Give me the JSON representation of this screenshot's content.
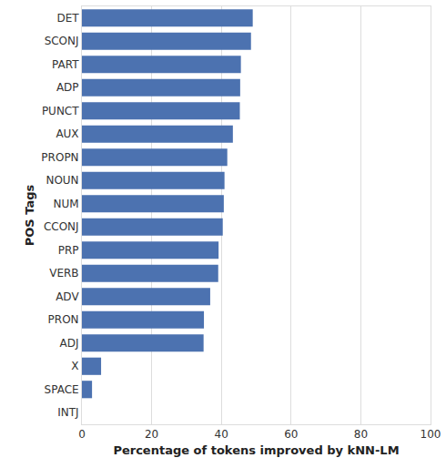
{
  "chart_data": {
    "type": "bar",
    "orientation": "horizontal",
    "xlabel": "Percentage of tokens improved by kNN-LM",
    "ylabel": "POS Tags",
    "categories": [
      "DET",
      "SCONJ",
      "PART",
      "ADP",
      "PUNCT",
      "AUX",
      "PROPN",
      "NOUN",
      "NUM",
      "CCONJ",
      "PRP",
      "VERB",
      "ADV",
      "PRON",
      "ADJ",
      "X",
      "SPACE",
      "INTJ"
    ],
    "values": [
      49.0,
      48.5,
      45.6,
      45.4,
      45.3,
      43.3,
      41.7,
      40.9,
      40.7,
      40.4,
      39.2,
      39.1,
      36.8,
      35.0,
      34.9,
      5.5,
      2.9,
      0
    ],
    "color": "#4c72b0",
    "xlim": [
      0,
      100
    ],
    "xticks": [
      0,
      20,
      40,
      60,
      80,
      100
    ],
    "grid": true
  }
}
